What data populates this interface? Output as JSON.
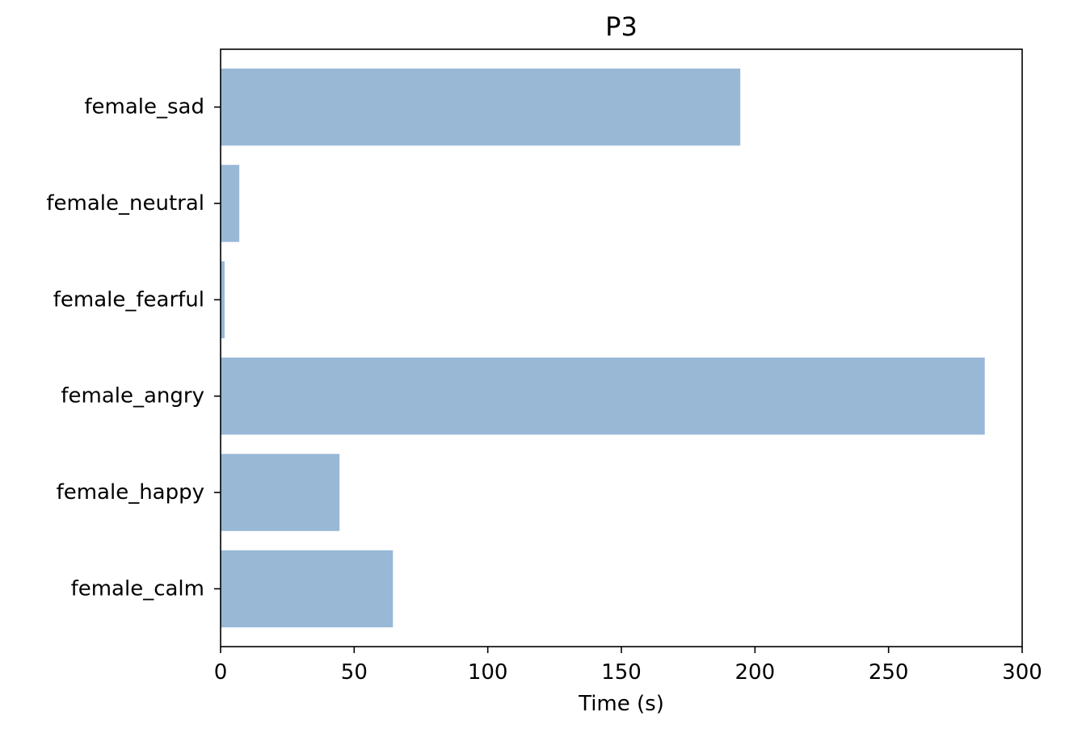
{
  "chart_data": {
    "type": "bar",
    "orientation": "horizontal",
    "title": "P3",
    "xlabel": "Time (s)",
    "ylabel": "",
    "categories": [
      "female_calm",
      "female_happy",
      "female_angry",
      "female_fearful",
      "female_neutral",
      "female_sad"
    ],
    "values": [
      64.5,
      44.5,
      286,
      1.5,
      7,
      194.5
    ],
    "xlim": [
      0,
      300
    ],
    "xticks": [
      0,
      50,
      100,
      150,
      200,
      250,
      300
    ],
    "xtick_labels": [
      "0",
      "50",
      "100",
      "150",
      "200",
      "250",
      "300"
    ],
    "bar_color": "#99b8d6",
    "grid": false,
    "legend": "none"
  }
}
